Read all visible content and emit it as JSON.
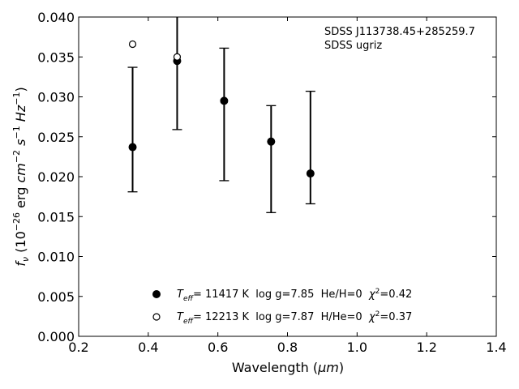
{
  "chart_data": {
    "type": "scatter",
    "title": "",
    "xlabel": "Wavelength",
    "xlabel_unit": "μm",
    "ylabel": "f",
    "ylabel_sub": "ν",
    "ylabel_unit_prefix": "(10",
    "ylabel_unit_exp": "−26",
    "ylabel_unit_mid": " erg ",
    "ylabel_unit_tail": "Hz",
    "xlim": [
      0.2,
      1.4
    ],
    "ylim": [
      0.0,
      0.04
    ],
    "xticks": [
      "0.2",
      "0.4",
      "0.6",
      "0.8",
      "1.0",
      "1.2",
      "1.4"
    ],
    "yticks": [
      "0.000",
      "0.005",
      "0.010",
      "0.015",
      "0.020",
      "0.025",
      "0.030",
      "0.035",
      "0.040"
    ],
    "grid": false,
    "annotation": [
      "SDSS J113738.45+285259.7",
      "SDSS ugriz"
    ],
    "series": [
      {
        "marker": "filled-circle",
        "legend": {
          "teff": "T",
          "teff_sub": "eff",
          "text1": "= 11417 K  log g=7.85  He/H=0  ",
          "chi": "χ",
          "chi_exp": "2",
          "text2": "=0.42"
        },
        "points": [
          {
            "x": 0.355,
            "y": 0.0237,
            "err_low": 0.0181,
            "err_high": 0.0337
          },
          {
            "x": 0.483,
            "y": 0.0345,
            "err_low": 0.0259,
            "err_high": 0.0431
          },
          {
            "x": 0.618,
            "y": 0.0295,
            "err_low": 0.0195,
            "err_high": 0.0361
          },
          {
            "x": 0.753,
            "y": 0.0244,
            "err_low": 0.0155,
            "err_high": 0.0289
          },
          {
            "x": 0.866,
            "y": 0.0204,
            "err_low": 0.0166,
            "err_high": 0.0307
          }
        ]
      },
      {
        "marker": "open-circle",
        "legend": {
          "teff": "T",
          "teff_sub": "eff",
          "text1": "= 12213 K  log g=7.87  H/He=0  ",
          "chi": "χ",
          "chi_exp": "2",
          "text2": "=0.37"
        },
        "points": [
          {
            "x": 0.355,
            "y": 0.0366
          },
          {
            "x": 0.483,
            "y": 0.035
          }
        ]
      }
    ]
  }
}
